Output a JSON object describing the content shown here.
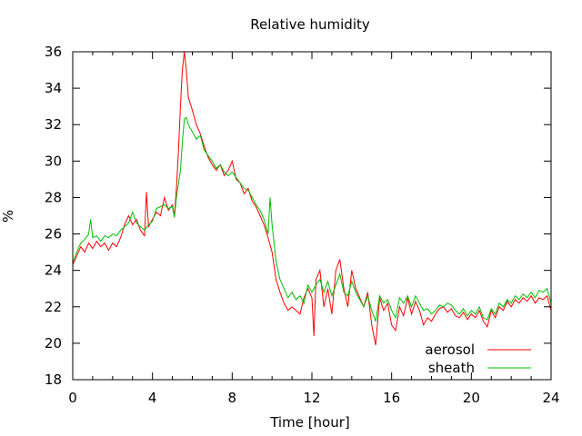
{
  "chart_data": {
    "type": "line",
    "title": "Relative humidity",
    "xlabel": "Time [hour]",
    "ylabel": "%",
    "xlim": [
      0,
      24
    ],
    "ylim": [
      18,
      36
    ],
    "x_ticks": [
      "0",
      "4",
      "8",
      "12",
      "16",
      "20",
      "24"
    ],
    "y_ticks": [
      "18",
      "20",
      "22",
      "24",
      "26",
      "28",
      "30",
      "32",
      "34",
      "36"
    ],
    "grid": false,
    "legend_position": "bottom-right",
    "series": [
      {
        "name": "aerosol",
        "color": "#ff0000",
        "points": [
          [
            0,
            24.3
          ],
          [
            0.2,
            24.8
          ],
          [
            0.4,
            25.3
          ],
          [
            0.6,
            25.0
          ],
          [
            0.8,
            25.5
          ],
          [
            1.0,
            25.2
          ],
          [
            1.2,
            25.6
          ],
          [
            1.4,
            25.3
          ],
          [
            1.6,
            25.5
          ],
          [
            1.8,
            25.1
          ],
          [
            2.0,
            25.5
          ],
          [
            2.2,
            25.3
          ],
          [
            2.4,
            25.8
          ],
          [
            2.6,
            26.5
          ],
          [
            2.8,
            27.0
          ],
          [
            3.0,
            26.5
          ],
          [
            3.2,
            26.8
          ],
          [
            3.4,
            26.2
          ],
          [
            3.6,
            25.9
          ],
          [
            3.7,
            28.3
          ],
          [
            3.8,
            26.4
          ],
          [
            4.0,
            26.8
          ],
          [
            4.2,
            27.2
          ],
          [
            4.4,
            27.0
          ],
          [
            4.6,
            28.0
          ],
          [
            4.8,
            27.3
          ],
          [
            5.0,
            27.6
          ],
          [
            5.1,
            27.0
          ],
          [
            5.2,
            28.5
          ],
          [
            5.3,
            30.5
          ],
          [
            5.4,
            33.0
          ],
          [
            5.5,
            35.0
          ],
          [
            5.6,
            36.0
          ],
          [
            5.7,
            35.0
          ],
          [
            5.8,
            33.5
          ],
          [
            6.0,
            32.8
          ],
          [
            6.2,
            32.0
          ],
          [
            6.4,
            31.5
          ],
          [
            6.6,
            30.8
          ],
          [
            6.8,
            30.2
          ],
          [
            7.0,
            29.8
          ],
          [
            7.2,
            29.5
          ],
          [
            7.4,
            29.8
          ],
          [
            7.6,
            29.2
          ],
          [
            7.8,
            29.5
          ],
          [
            8.0,
            30.0
          ],
          [
            8.2,
            29.0
          ],
          [
            8.4,
            28.8
          ],
          [
            8.6,
            28.2
          ],
          [
            8.8,
            28.5
          ],
          [
            9.0,
            27.8
          ],
          [
            9.2,
            27.5
          ],
          [
            9.4,
            27.0
          ],
          [
            9.6,
            26.5
          ],
          [
            9.8,
            25.8
          ],
          [
            10.0,
            25.0
          ],
          [
            10.2,
            23.5
          ],
          [
            10.4,
            22.8
          ],
          [
            10.6,
            22.2
          ],
          [
            10.8,
            21.8
          ],
          [
            11.0,
            22.0
          ],
          [
            11.2,
            21.8
          ],
          [
            11.4,
            21.6
          ],
          [
            11.6,
            22.5
          ],
          [
            11.8,
            23.0
          ],
          [
            12.0,
            22.5
          ],
          [
            12.1,
            20.4
          ],
          [
            12.2,
            23.5
          ],
          [
            12.4,
            24.0
          ],
          [
            12.6,
            22.0
          ],
          [
            12.8,
            23.0
          ],
          [
            13.0,
            21.6
          ],
          [
            13.2,
            24.0
          ],
          [
            13.4,
            24.6
          ],
          [
            13.6,
            23.0
          ],
          [
            13.8,
            22.0
          ],
          [
            14.0,
            24.0
          ],
          [
            14.2,
            23.0
          ],
          [
            14.4,
            22.5
          ],
          [
            14.6,
            22.0
          ],
          [
            14.8,
            22.8
          ],
          [
            15.0,
            21.0
          ],
          [
            15.2,
            19.9
          ],
          [
            15.4,
            22.5
          ],
          [
            15.6,
            21.8
          ],
          [
            15.8,
            22.2
          ],
          [
            16.0,
            21.0
          ],
          [
            16.2,
            20.7
          ],
          [
            16.4,
            22.0
          ],
          [
            16.6,
            21.5
          ],
          [
            16.8,
            22.5
          ],
          [
            17.0,
            21.6
          ],
          [
            17.2,
            22.3
          ],
          [
            17.4,
            21.8
          ],
          [
            17.6,
            21.0
          ],
          [
            17.8,
            21.4
          ],
          [
            18.0,
            21.2
          ],
          [
            18.2,
            21.6
          ],
          [
            18.4,
            21.9
          ],
          [
            18.6,
            22.0
          ],
          [
            18.8,
            21.7
          ],
          [
            19.0,
            21.9
          ],
          [
            19.2,
            21.5
          ],
          [
            19.4,
            21.4
          ],
          [
            19.6,
            21.7
          ],
          [
            19.8,
            21.3
          ],
          [
            20.0,
            21.6
          ],
          [
            20.2,
            21.4
          ],
          [
            20.4,
            21.8
          ],
          [
            20.6,
            21.2
          ],
          [
            20.8,
            20.9
          ],
          [
            21.0,
            21.8
          ],
          [
            21.2,
            21.4
          ],
          [
            21.4,
            22.0
          ],
          [
            21.6,
            21.8
          ],
          [
            21.8,
            22.3
          ],
          [
            22.0,
            22.0
          ],
          [
            22.2,
            22.4
          ],
          [
            22.4,
            22.2
          ],
          [
            22.6,
            22.5
          ],
          [
            22.8,
            22.3
          ],
          [
            23.0,
            22.6
          ],
          [
            23.2,
            22.2
          ],
          [
            23.4,
            22.5
          ],
          [
            23.6,
            22.4
          ],
          [
            23.8,
            22.6
          ],
          [
            24.0,
            21.8
          ]
        ]
      },
      {
        "name": "sheath",
        "color": "#00c000",
        "points": [
          [
            0,
            24.4
          ],
          [
            0.2,
            25.0
          ],
          [
            0.4,
            25.5
          ],
          [
            0.6,
            25.7
          ],
          [
            0.8,
            26.0
          ],
          [
            0.9,
            26.8
          ],
          [
            1.0,
            25.8
          ],
          [
            1.2,
            25.9
          ],
          [
            1.4,
            25.6
          ],
          [
            1.6,
            25.9
          ],
          [
            1.8,
            25.8
          ],
          [
            2.0,
            26.0
          ],
          [
            2.2,
            25.9
          ],
          [
            2.4,
            26.2
          ],
          [
            2.6,
            26.4
          ],
          [
            2.8,
            26.6
          ],
          [
            3.0,
            27.2
          ],
          [
            3.2,
            26.6
          ],
          [
            3.4,
            26.4
          ],
          [
            3.6,
            26.2
          ],
          [
            3.8,
            26.5
          ],
          [
            4.0,
            26.7
          ],
          [
            4.2,
            27.4
          ],
          [
            4.4,
            27.5
          ],
          [
            4.6,
            27.6
          ],
          [
            4.8,
            27.4
          ],
          [
            5.0,
            27.5
          ],
          [
            5.1,
            26.9
          ],
          [
            5.2,
            28.0
          ],
          [
            5.4,
            29.5
          ],
          [
            5.5,
            31.0
          ],
          [
            5.6,
            32.3
          ],
          [
            5.7,
            32.4
          ],
          [
            5.8,
            32.0
          ],
          [
            6.0,
            31.6
          ],
          [
            6.2,
            31.2
          ],
          [
            6.4,
            31.4
          ],
          [
            6.6,
            30.6
          ],
          [
            6.8,
            30.3
          ],
          [
            7.0,
            30.0
          ],
          [
            7.2,
            29.6
          ],
          [
            7.4,
            29.8
          ],
          [
            7.6,
            29.4
          ],
          [
            7.8,
            29.2
          ],
          [
            8.0,
            29.4
          ],
          [
            8.2,
            29.1
          ],
          [
            8.4,
            28.8
          ],
          [
            8.6,
            28.5
          ],
          [
            8.8,
            28.4
          ],
          [
            9.0,
            28.0
          ],
          [
            9.2,
            27.6
          ],
          [
            9.4,
            27.3
          ],
          [
            9.6,
            26.8
          ],
          [
            9.8,
            26.0
          ],
          [
            9.9,
            28.0
          ],
          [
            10.0,
            26.5
          ],
          [
            10.2,
            24.5
          ],
          [
            10.4,
            23.5
          ],
          [
            10.6,
            23.0
          ],
          [
            10.8,
            22.5
          ],
          [
            11.0,
            22.8
          ],
          [
            11.2,
            22.4
          ],
          [
            11.4,
            22.6
          ],
          [
            11.6,
            22.2
          ],
          [
            11.8,
            23.2
          ],
          [
            12.0,
            22.8
          ],
          [
            12.2,
            23.2
          ],
          [
            12.4,
            23.5
          ],
          [
            12.6,
            22.8
          ],
          [
            12.8,
            23.4
          ],
          [
            13.0,
            22.6
          ],
          [
            13.2,
            23.2
          ],
          [
            13.4,
            23.8
          ],
          [
            13.6,
            22.8
          ],
          [
            13.8,
            22.6
          ],
          [
            14.0,
            23.4
          ],
          [
            14.2,
            22.8
          ],
          [
            14.4,
            22.4
          ],
          [
            14.6,
            22.0
          ],
          [
            14.8,
            22.6
          ],
          [
            15.0,
            21.8
          ],
          [
            15.2,
            21.2
          ],
          [
            15.4,
            22.6
          ],
          [
            15.6,
            22.2
          ],
          [
            15.8,
            22.4
          ],
          [
            16.0,
            21.8
          ],
          [
            16.2,
            21.4
          ],
          [
            16.4,
            22.5
          ],
          [
            16.6,
            22.2
          ],
          [
            16.8,
            22.6
          ],
          [
            17.0,
            22.0
          ],
          [
            17.2,
            22.6
          ],
          [
            17.4,
            22.2
          ],
          [
            17.6,
            21.8
          ],
          [
            17.8,
            21.9
          ],
          [
            18.0,
            21.6
          ],
          [
            18.2,
            21.8
          ],
          [
            18.4,
            22.1
          ],
          [
            18.6,
            22.0
          ],
          [
            18.8,
            22.2
          ],
          [
            19.0,
            22.1
          ],
          [
            19.2,
            21.8
          ],
          [
            19.4,
            21.6
          ],
          [
            19.6,
            21.9
          ],
          [
            19.8,
            21.5
          ],
          [
            20.0,
            21.8
          ],
          [
            20.2,
            21.6
          ],
          [
            20.4,
            22.0
          ],
          [
            20.6,
            21.4
          ],
          [
            20.8,
            21.3
          ],
          [
            21.0,
            21.9
          ],
          [
            21.2,
            21.6
          ],
          [
            21.4,
            22.2
          ],
          [
            21.6,
            22.0
          ],
          [
            21.8,
            22.4
          ],
          [
            22.0,
            22.2
          ],
          [
            22.2,
            22.6
          ],
          [
            22.4,
            22.4
          ],
          [
            22.6,
            22.7
          ],
          [
            22.8,
            22.5
          ],
          [
            23.0,
            22.8
          ],
          [
            23.2,
            22.5
          ],
          [
            23.4,
            22.9
          ],
          [
            23.6,
            22.8
          ],
          [
            23.8,
            23.0
          ],
          [
            24.0,
            22.2
          ]
        ]
      }
    ]
  }
}
